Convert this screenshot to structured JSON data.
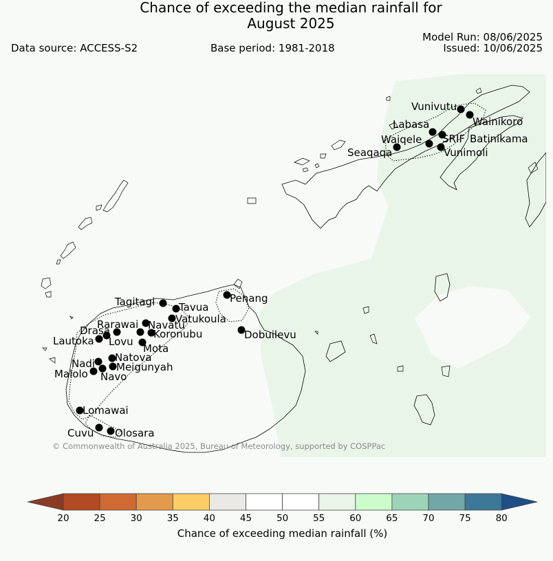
{
  "title": {
    "line1": "Chance of exceeding the median rainfall for",
    "line2": "August 2025"
  },
  "header": {
    "data_source": "Data source: ACCESS-S2",
    "base_period": "Base period: 1981-2018",
    "model_run": "Model Run: 08/06/2025",
    "issued": "Issued: 10/06/2025"
  },
  "copyright": "© Commonwealth of Australia 2025, Bureau of Meteorology, supported by COSPPac",
  "stations": [
    {
      "name": "Vunivutu"
    },
    {
      "name": "Wainikoro"
    },
    {
      "name": "Labasa"
    },
    {
      "name": "SRIF"
    },
    {
      "name": "Batinikama"
    },
    {
      "name": "Waiqele"
    },
    {
      "name": "Seaqaqa"
    },
    {
      "name": "Vunimoli"
    },
    {
      "name": "Tagitagi"
    },
    {
      "name": "Tavua"
    },
    {
      "name": "Penang"
    },
    {
      "name": "Vatukoula"
    },
    {
      "name": "Rarawai"
    },
    {
      "name": "Navatu"
    },
    {
      "name": "Drasa"
    },
    {
      "name": "Koronubu"
    },
    {
      "name": "Lautoka"
    },
    {
      "name": "Lovu"
    },
    {
      "name": "Mota"
    },
    {
      "name": "Dobuilevu"
    },
    {
      "name": "Natova"
    },
    {
      "name": "Nadi"
    },
    {
      "name": "Meigunyah"
    },
    {
      "name": "Malolo"
    },
    {
      "name": "Navo"
    },
    {
      "name": "Lomawai"
    },
    {
      "name": "Cuvu"
    },
    {
      "name": "Olosara"
    }
  ],
  "colorbar": {
    "title": "Chance of exceeding median rainfall (%)",
    "ticks": [
      "20",
      "25",
      "30",
      "35",
      "40",
      "45",
      "50",
      "55",
      "60",
      "65",
      "70",
      "75",
      "80"
    ],
    "under_color": "#8b3a24",
    "over_color": "#1f4f86",
    "colors": [
      "#b24a24",
      "#cf6a33",
      "#e49a4c",
      "#fece66",
      "#ebe9e6",
      "#ffffff",
      "#ffffff",
      "#eaf5ea",
      "#ccfccc",
      "#9dd4b8",
      "#70a8a8",
      "#3e7898"
    ]
  },
  "map": {
    "shading": [
      {
        "band": "55-60",
        "color": "#eaf5ea",
        "region": "north-east and east"
      }
    ]
  }
}
